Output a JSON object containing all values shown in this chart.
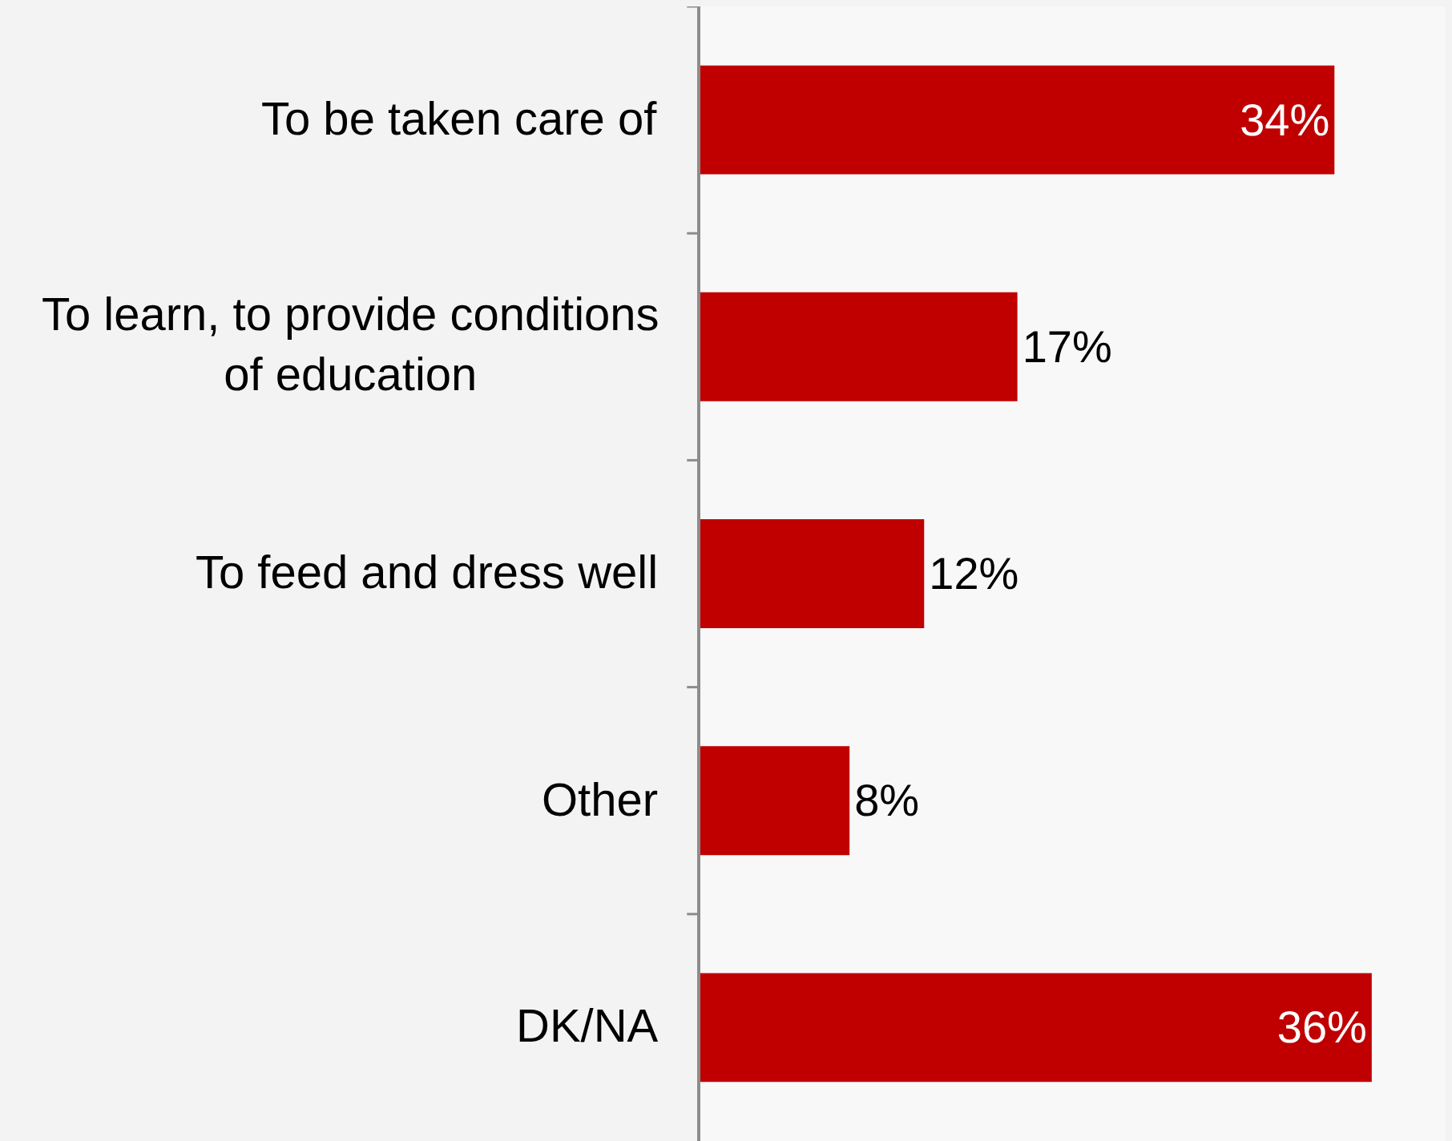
{
  "chart_data": {
    "type": "bar",
    "orientation": "horizontal",
    "categories": [
      "To be taken care of",
      "To learn, to provide conditions of education",
      "To feed and dress well",
      "Other",
      "DK/NA"
    ],
    "values": [
      34,
      17,
      12,
      8,
      36
    ],
    "value_labels": [
      "34%",
      "17%",
      "12%",
      "8%",
      "36%"
    ],
    "color": "#c00000"
  }
}
